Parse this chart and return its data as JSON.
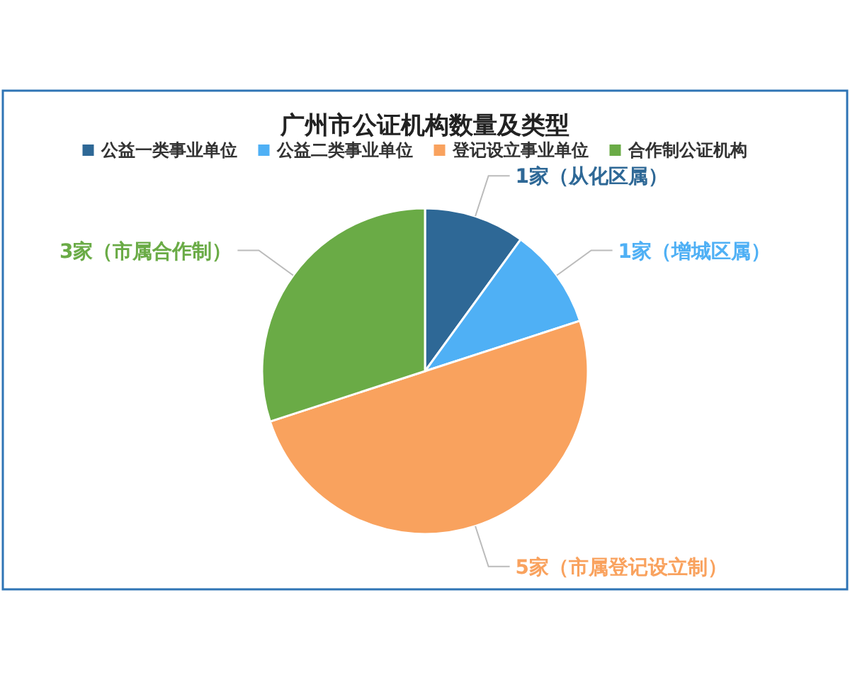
{
  "chart_data": {
    "type": "pie",
    "title": "广州市公证机构数量及类型",
    "categories": [
      "公益一类事业单位",
      "公益二类事业单位",
      "登记设立事业单位",
      "合作制公证机构"
    ],
    "values": [
      1,
      1,
      5,
      3
    ],
    "colors": [
      "#2e6896",
      "#4fb0f5",
      "#f9a25e",
      "#6aab46"
    ],
    "value_labels": [
      "1家（从化区属）",
      "1家（增城区属）",
      "5家（市属登记设立制）",
      "3家（市属合作制）"
    ],
    "legend": "top"
  }
}
